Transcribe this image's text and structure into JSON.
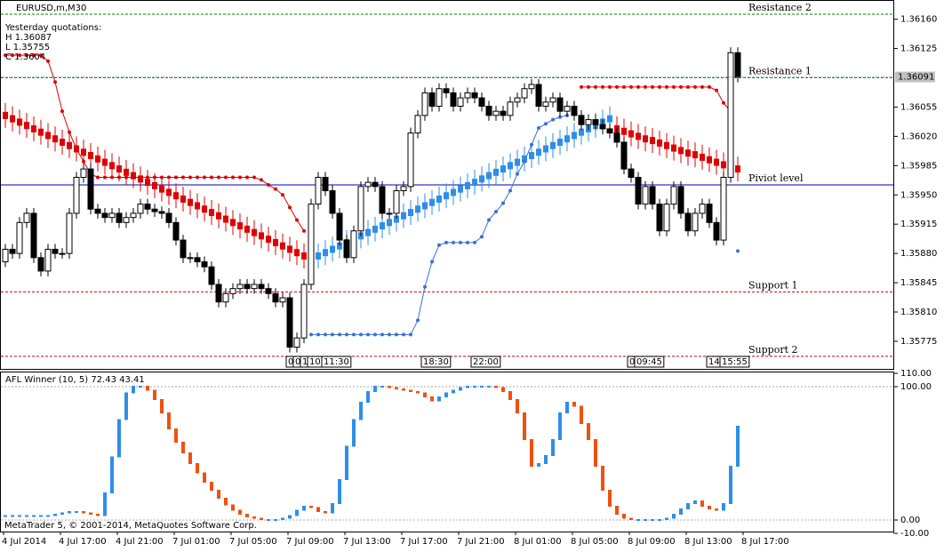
{
  "window": {
    "symbol": "EURUSD,m,M30",
    "info": [
      "Yesterday quotations:",
      "H 1.36087",
      "L 1.35755",
      "C 1.3604"
    ],
    "footer": "MetaTrader 5, © 2001-2014, MetaQuotes Software Corp.",
    "time_labels": [
      "4 Jul 2014",
      "4 Jul 17:00",
      "4 Jul 21:00",
      "7 Jul 01:00",
      "7 Jul 05:00",
      "7 Jul 09:00",
      "7 Jul 13:00",
      "7 Jul 17:00",
      "7 Jul 21:00",
      "8 Jul 01:00",
      "8 Jul 05:00",
      "8 Jul 09:00",
      "8 Jul 13:00",
      "8 Jul 17:00"
    ],
    "period_labels": [
      "0",
      "0",
      "1",
      "10:",
      "11:30",
      "18:30",
      "22:00",
      "0",
      "09:45",
      "14:",
      "15:55"
    ]
  },
  "chart_data": [
    {
      "type": "candlestick",
      "up_color": "#ffffff",
      "down_color": "#000000",
      "open": [
        1.3587,
        1.35885,
        1.3588,
        1.35917,
        1.35928,
        1.35875,
        1.35859,
        1.35885,
        1.3588,
        1.3588,
        1.35928,
        1.35971,
        1.35981,
        1.35933,
        1.35928,
        1.35923,
        1.35928,
        1.35917,
        1.35923,
        1.35928,
        1.35939,
        1.35933,
        1.3593,
        1.35928,
        1.35917,
        1.35896,
        1.35875,
        1.35875,
        1.3587,
        1.35864,
        1.35843,
        1.35822,
        1.35832,
        1.35838,
        1.35843,
        1.35838,
        1.35843,
        1.35838,
        1.35832,
        1.35822,
        1.35827,
        1.35768,
        1.35779,
        1.35843,
        1.35939,
        1.35971,
        1.35955,
        1.35928,
        1.35896,
        1.35875,
        1.35907,
        1.3596,
        1.35965,
        1.3596,
        1.35928,
        1.35928,
        1.35955,
        1.3596,
        1.36024,
        1.36045,
        1.36072,
        1.36056,
        1.36077,
        1.36072,
        1.36056,
        1.36066,
        1.36072,
        1.36066,
        1.36056,
        1.36045,
        1.3605,
        1.36045,
        1.36061,
        1.36066,
        1.36077,
        1.36082,
        1.36056,
        1.36061,
        1.36066,
        1.3605,
        1.36056,
        1.36045,
        1.36034,
        1.3604,
        1.36034,
        1.36029,
        1.36024,
        1.36013,
        1.35981,
        1.35971,
        1.35939,
        1.3596,
        1.35939,
        1.35907,
        1.35939,
        1.3596,
        1.35928,
        1.35907,
        1.35928,
        1.35939,
        1.35917,
        1.35896,
        1.35971,
        1.3612
      ],
      "close": [
        1.35885,
        1.3588,
        1.35917,
        1.35928,
        1.35875,
        1.35859,
        1.35885,
        1.3588,
        1.3588,
        1.35928,
        1.35971,
        1.35981,
        1.35933,
        1.35928,
        1.35923,
        1.35928,
        1.35917,
        1.35923,
        1.35928,
        1.35939,
        1.35933,
        1.3593,
        1.35928,
        1.35917,
        1.35896,
        1.35875,
        1.35875,
        1.3587,
        1.35864,
        1.35843,
        1.35822,
        1.35832,
        1.35838,
        1.35843,
        1.35838,
        1.35843,
        1.35838,
        1.35832,
        1.35822,
        1.35827,
        1.35768,
        1.35779,
        1.35843,
        1.35939,
        1.35971,
        1.35955,
        1.35928,
        1.35896,
        1.35875,
        1.35907,
        1.3596,
        1.35965,
        1.3596,
        1.35928,
        1.35928,
        1.35955,
        1.3596,
        1.36024,
        1.36045,
        1.36072,
        1.36056,
        1.36077,
        1.36072,
        1.36056,
        1.36066,
        1.36072,
        1.36066,
        1.36056,
        1.36045,
        1.3605,
        1.36045,
        1.36061,
        1.36066,
        1.36077,
        1.36082,
        1.36056,
        1.36061,
        1.36066,
        1.3605,
        1.36056,
        1.36045,
        1.36034,
        1.3604,
        1.36034,
        1.36029,
        1.36024,
        1.36013,
        1.35981,
        1.35971,
        1.35939,
        1.3596,
        1.35939,
        1.35907,
        1.35939,
        1.3596,
        1.35928,
        1.35907,
        1.35928,
        1.35939,
        1.35917,
        1.35896,
        1.35971,
        1.3612,
        1.36091
      ],
      "overlays": [
        {
          "style": "thick",
          "color": "#e00000",
          "values": [
            1.36045,
            1.36041,
            1.36037,
            1.36033,
            1.36029,
            1.36025,
            1.36021,
            1.36017,
            1.36013,
            1.36009,
            1.36005,
            1.36001,
            1.35997,
            1.35993,
            1.35989,
            1.35985,
            1.35981,
            1.35977,
            1.35973,
            1.35969,
            1.35965,
            1.35961,
            1.35957,
            1.35953,
            1.35949,
            1.35945,
            1.35941,
            1.35937,
            1.35933,
            1.35929,
            1.35925,
            1.35921,
            1.35917,
            1.35913,
            1.35909,
            1.35905,
            1.35901,
            1.35897,
            1.35893,
            1.35889,
            1.35885,
            1.35881,
            1.35877,
            1.35873,
            null,
            null,
            null,
            null,
            null,
            null,
            null,
            null,
            null,
            null,
            null,
            null,
            null,
            null,
            null,
            null,
            null,
            null,
            null,
            null,
            null,
            null,
            null,
            null,
            null,
            null,
            null,
            null,
            null,
            null,
            null,
            null,
            null,
            null,
            null,
            null,
            null,
            null,
            null,
            null,
            null,
            null,
            1.36029,
            1.36026,
            1.36023,
            1.3602,
            1.36017,
            1.36015,
            1.36012,
            1.36009,
            1.36006,
            1.36003,
            1.36,
            1.35998,
            1.35995,
            1.35992,
            1.35989,
            1.35986,
            1.35983,
            1.35981
          ]
        },
        {
          "style": "thick",
          "color": "#2e8ee8",
          "values": [
            null,
            null,
            null,
            null,
            null,
            null,
            null,
            null,
            null,
            null,
            null,
            null,
            null,
            null,
            null,
            null,
            null,
            null,
            null,
            null,
            null,
            null,
            null,
            null,
            null,
            null,
            null,
            null,
            null,
            null,
            null,
            null,
            null,
            null,
            null,
            null,
            null,
            null,
            null,
            null,
            null,
            null,
            null,
            1.35873,
            1.35877,
            1.35881,
            1.35885,
            1.35889,
            1.35893,
            1.35897,
            1.35901,
            1.35905,
            1.35909,
            1.35913,
            1.35917,
            1.35921,
            1.35925,
            1.35929,
            1.35933,
            1.35937,
            1.35941,
            1.35945,
            1.35949,
            1.35953,
            1.35957,
            1.35961,
            1.35965,
            1.35969,
            1.35973,
            1.35977,
            1.35981,
            1.35985,
            1.35989,
            1.35993,
            1.35997,
            1.36001,
            1.36005,
            1.36009,
            1.36013,
            1.36017,
            1.36021,
            1.36025,
            1.36029,
            1.36033,
            1.36037,
            1.36041,
            null,
            null,
            null,
            null,
            null,
            null,
            null,
            null,
            null,
            null,
            null,
            null,
            null,
            null,
            null,
            null,
            null,
            null
          ]
        },
        {
          "style": "dotted",
          "color": "#e00000",
          "values": [
            1.36117,
            1.36117,
            1.36117,
            1.36117,
            1.36117,
            1.36117,
            1.3611,
            1.36085,
            1.3605,
            1.36025,
            1.36005,
            1.3599,
            1.35975,
            1.35971,
            1.35971,
            1.35971,
            1.35971,
            1.35971,
            1.35971,
            1.35971,
            1.35971,
            1.35971,
            1.35971,
            1.35971,
            1.35971,
            1.35971,
            1.35971,
            1.35971,
            1.35971,
            1.35971,
            1.35971,
            1.35971,
            1.35971,
            1.35971,
            1.35971,
            1.35971,
            1.35968,
            1.35962,
            1.35957,
            1.3595,
            1.35935,
            1.3592,
            1.35907,
            null,
            null,
            null,
            null,
            null,
            null,
            null,
            null,
            null,
            null,
            null,
            null,
            null,
            null,
            null,
            null,
            null,
            null,
            null,
            null,
            null,
            null,
            null,
            null,
            null,
            null,
            null,
            null,
            null,
            null,
            null,
            null,
            null,
            null,
            null,
            null,
            null,
            null,
            1.36079,
            1.36079,
            1.36079,
            1.36079,
            1.36079,
            1.36079,
            1.36079,
            1.36079,
            1.36079,
            1.36079,
            1.36079,
            1.36079,
            1.36079,
            1.36079,
            1.36079,
            1.36079,
            1.36079,
            1.36079,
            1.36079,
            1.36075,
            1.3606,
            1.3605,
            null
          ]
        },
        {
          "style": "dotted",
          "color": "#3a6fd8",
          "values": [
            null,
            null,
            null,
            null,
            null,
            null,
            null,
            null,
            null,
            null,
            null,
            null,
            null,
            null,
            null,
            null,
            null,
            null,
            null,
            null,
            null,
            null,
            null,
            null,
            null,
            null,
            null,
            null,
            null,
            null,
            null,
            null,
            null,
            null,
            null,
            null,
            null,
            null,
            null,
            null,
            null,
            null,
            null,
            1.35783,
            1.35783,
            1.35783,
            1.35783,
            1.35783,
            1.35783,
            1.35783,
            1.35783,
            1.35783,
            1.35783,
            1.35783,
            1.35783,
            1.35783,
            1.35783,
            1.35783,
            1.358,
            1.3584,
            1.3587,
            1.3589,
            1.35893,
            1.35893,
            1.35893,
            1.35893,
            1.35893,
            1.359,
            1.3592,
            1.3593,
            1.3594,
            1.35955,
            1.35975,
            1.3599,
            1.3601,
            1.3603,
            1.36035,
            1.3604,
            1.36043,
            1.36045,
            null,
            null,
            null,
            null,
            null,
            null,
            null,
            null,
            null,
            null,
            null,
            null,
            null,
            null,
            null,
            null,
            null,
            null,
            null,
            null,
            null,
            null,
            null,
            1.35883
          ]
        }
      ],
      "levels": [
        {
          "name": "Resistance 2",
          "value": 1.36166,
          "color": "#008000",
          "dash": true
        },
        {
          "name": "Resistance 1",
          "value": 1.3609,
          "color": "#008080",
          "dash": true
        },
        {
          "name": "Piviot level",
          "value": 1.35962,
          "color": "#0000c0",
          "dash": false
        },
        {
          "name": "Support 1",
          "value": 1.35834,
          "color": "#e00000",
          "dash": true
        },
        {
          "name": "Support 2",
          "value": 1.35757,
          "color": "#c00040",
          "dash": true
        }
      ],
      "current_price": {
        "value": 1.36091,
        "label": "1.36091"
      },
      "ylim": [
        1.35742,
        1.36183
      ],
      "yticks": [
        {
          "value": 1.3616,
          "label": "1.36160"
        },
        {
          "value": 1.36125,
          "label": "1.36125"
        },
        {
          "value": 1.36055,
          "label": "1.36055"
        },
        {
          "value": 1.3602,
          "label": "1.36020"
        },
        {
          "value": 1.35985,
          "label": "1.35985"
        },
        {
          "value": 1.3595,
          "label": "1.35950"
        },
        {
          "value": 1.35915,
          "label": "1.35915"
        },
        {
          "value": 1.3588,
          "label": "1.35880"
        },
        {
          "value": 1.35845,
          "label": "1.35845"
        },
        {
          "value": 1.3581,
          "label": "1.35810"
        },
        {
          "value": 1.35775,
          "label": "1.35775"
        }
      ]
    },
    {
      "type": "oscillator",
      "title": "AFL Winner (10, 5) 72.43 43.41",
      "up_color": "#2e8ee8",
      "down_color": "#f05010",
      "values": [
        3,
        3,
        3,
        3,
        3,
        3,
        3,
        4,
        5,
        6,
        6,
        5,
        4,
        3,
        20,
        47,
        75,
        95,
        100,
        100,
        97,
        90,
        80,
        68,
        58,
        50,
        42,
        35,
        28,
        22,
        16,
        11,
        7,
        4,
        2,
        1,
        0,
        0,
        0,
        1,
        3,
        7,
        10,
        9,
        6,
        5,
        12,
        30,
        55,
        75,
        88,
        96,
        100,
        100,
        99,
        98,
        97,
        96,
        95,
        92,
        89,
        92,
        95,
        97,
        99,
        100,
        100,
        100,
        100,
        99,
        96,
        90,
        80,
        60,
        40,
        42,
        48,
        60,
        80,
        88,
        85,
        72,
        60,
        40,
        22,
        10,
        4,
        1,
        0,
        0,
        0,
        0,
        0,
        1,
        4,
        8,
        12,
        14,
        10,
        8,
        7,
        12,
        40,
        70
      ],
      "ylim": [
        -10,
        110
      ],
      "yticks": [
        {
          "value": 110,
          "label": "110.00"
        },
        {
          "value": 100,
          "label": "100.00"
        },
        {
          "value": 0,
          "label": "0.00"
        },
        {
          "value": -10,
          "label": "-10.00"
        }
      ],
      "reference_lines": [
        100,
        0
      ]
    }
  ]
}
